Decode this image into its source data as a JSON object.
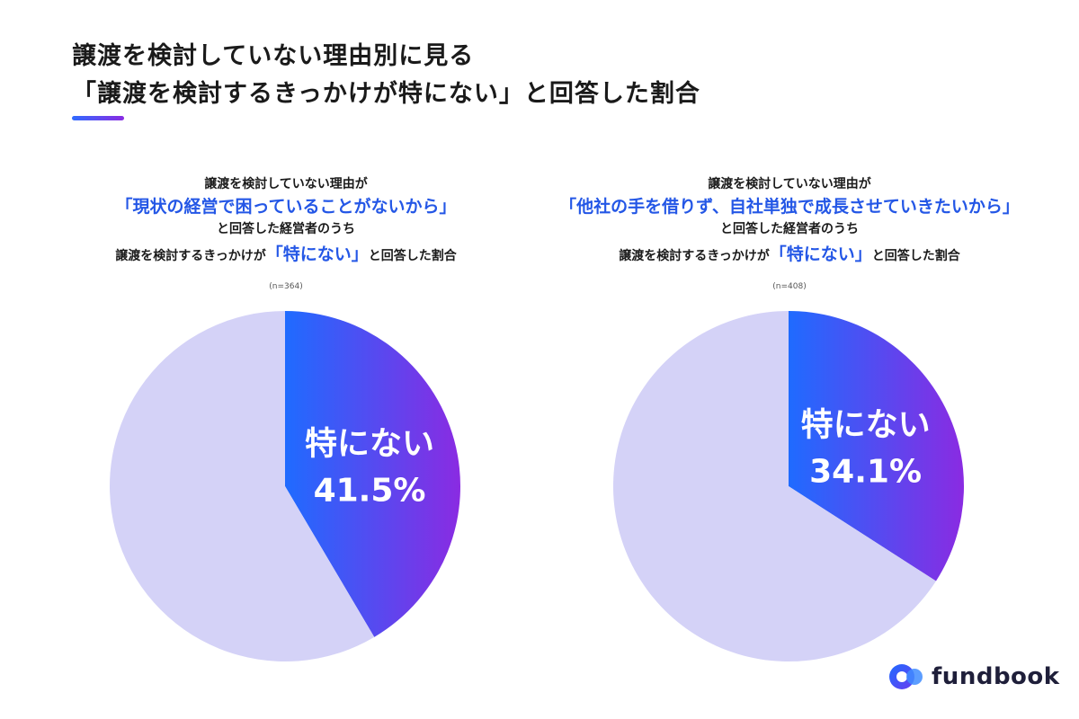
{
  "title": {
    "line1": "譲渡を検討していない理由別に見る",
    "line2": "「譲渡を検討するきっかけが特にない」と回答した割合"
  },
  "colors": {
    "accent": "#2457e6",
    "slice_start": "#1f6bff",
    "slice_end": "#8a2be2",
    "remainder": "#d4d2f7"
  },
  "charts": [
    {
      "desc_line1": "譲渡を検討していない理由が",
      "reason": "「現状の経営で困っていることがないから」",
      "desc_line3": "と回答した経営者のうち",
      "desc_line4_pre": "譲渡を検討するきっかけが",
      "desc_line4_accent": "「特にない」",
      "desc_line4_post": "と回答した割合",
      "sample": "(n=364)"
    },
    {
      "desc_line1": "譲渡を検討していない理由が",
      "reason": "「他社の手を借りず、自社単独で成長させていきたいから」",
      "desc_line3": "と回答した経営者のうち",
      "desc_line4_pre": "譲渡を検討するきっかけが",
      "desc_line4_accent": "「特にない」",
      "desc_line4_post": "と回答した割合",
      "sample": "(n=408)"
    }
  ],
  "chart_data": [
    {
      "type": "pie",
      "title": "「現状の経営で困っていることがないから」と回答した経営者のうち譲渡を検討するきっかけが「特にない」と回答した割合",
      "n": 364,
      "slices": [
        {
          "label": "特にない",
          "value": 41.5,
          "display": "41.5%",
          "highlight": true
        },
        {
          "label": "",
          "value": 58.5,
          "highlight": false
        }
      ]
    },
    {
      "type": "pie",
      "title": "「他社の手を借りず、自社単独で成長させていきたいから」と回答した経営者のうち譲渡を検討するきっかけが「特にない」と回答した割合",
      "n": 408,
      "slices": [
        {
          "label": "特にない",
          "value": 34.1,
          "display": "34.1%",
          "highlight": true
        },
        {
          "label": "",
          "value": 65.9,
          "highlight": false
        }
      ]
    }
  ],
  "logo": {
    "text": "fundbook"
  }
}
